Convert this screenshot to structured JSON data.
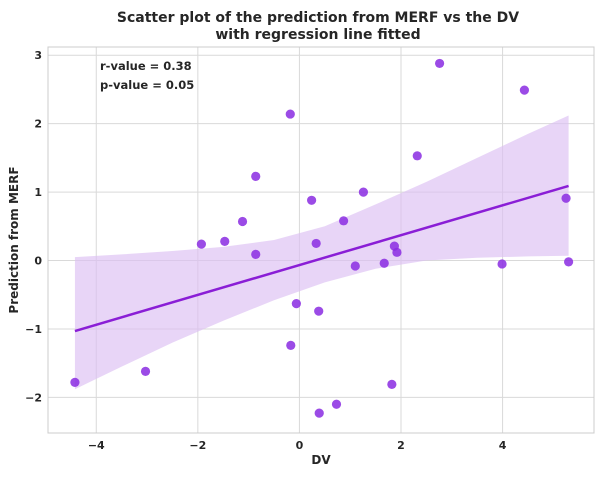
{
  "chart_data": {
    "type": "scatter",
    "title": [
      "Scatter plot of the prediction from MERF vs the DV",
      "with regression line fitted"
    ],
    "xlabel": "DV",
    "ylabel": "Prediction from MERF",
    "xlim": [
      -4.95,
      5.8
    ],
    "ylim": [
      -2.52,
      3.12
    ],
    "xticks": [
      -4,
      -2,
      0,
      2,
      4
    ],
    "yticks": [
      -2,
      -1,
      0,
      1,
      2,
      3
    ],
    "grid": true,
    "annotations": [
      "r-value = 0.38",
      "p-value = 0.05"
    ],
    "colors": {
      "points": "#8a2be2",
      "line": "#8a1ed6",
      "band": "#dcbff2",
      "grid": "#d9d9d9",
      "axes": "#cccccc"
    },
    "points": [
      {
        "x": -4.42,
        "y": -1.78
      },
      {
        "x": -3.03,
        "y": -1.62
      },
      {
        "x": -1.93,
        "y": 0.24
      },
      {
        "x": -1.47,
        "y": 0.28
      },
      {
        "x": -1.12,
        "y": 0.57
      },
      {
        "x": -0.86,
        "y": 1.23
      },
      {
        "x": -0.86,
        "y": 0.09
      },
      {
        "x": -0.18,
        "y": 2.14
      },
      {
        "x": -0.17,
        "y": -1.24
      },
      {
        "x": -0.06,
        "y": -0.63
      },
      {
        "x": 0.24,
        "y": 0.88
      },
      {
        "x": 0.33,
        "y": 0.25
      },
      {
        "x": 0.38,
        "y": -0.74
      },
      {
        "x": 0.39,
        "y": -2.23
      },
      {
        "x": 0.73,
        "y": -2.1
      },
      {
        "x": 0.87,
        "y": 0.58
      },
      {
        "x": 1.1,
        "y": -0.08
      },
      {
        "x": 1.26,
        "y": 1.0
      },
      {
        "x": 1.67,
        "y": -0.04
      },
      {
        "x": 1.82,
        "y": -1.81
      },
      {
        "x": 1.87,
        "y": 0.21
      },
      {
        "x": 1.92,
        "y": 0.12
      },
      {
        "x": 2.32,
        "y": 1.53
      },
      {
        "x": 2.76,
        "y": 2.88
      },
      {
        "x": 3.99,
        "y": -0.05
      },
      {
        "x": 4.43,
        "y": 2.49
      },
      {
        "x": 5.25,
        "y": 0.91
      },
      {
        "x": 5.3,
        "y": -0.02
      }
    ],
    "regression_line": {
      "x": [
        -4.42,
        5.3
      ],
      "y": [
        -1.03,
        1.09
      ]
    },
    "confidence_band": {
      "x": [
        -4.42,
        -3.5,
        -2.5,
        -1.5,
        -0.5,
        0.5,
        1.5,
        2.5,
        3.5,
        4.5,
        5.3
      ],
      "lower": [
        -1.88,
        -1.55,
        -1.2,
        -0.88,
        -0.58,
        -0.32,
        -0.12,
        0.0,
        0.04,
        0.06,
        0.07
      ],
      "upper": [
        0.05,
        0.09,
        0.14,
        0.2,
        0.3,
        0.5,
        0.82,
        1.15,
        1.5,
        1.85,
        2.12
      ]
    }
  }
}
